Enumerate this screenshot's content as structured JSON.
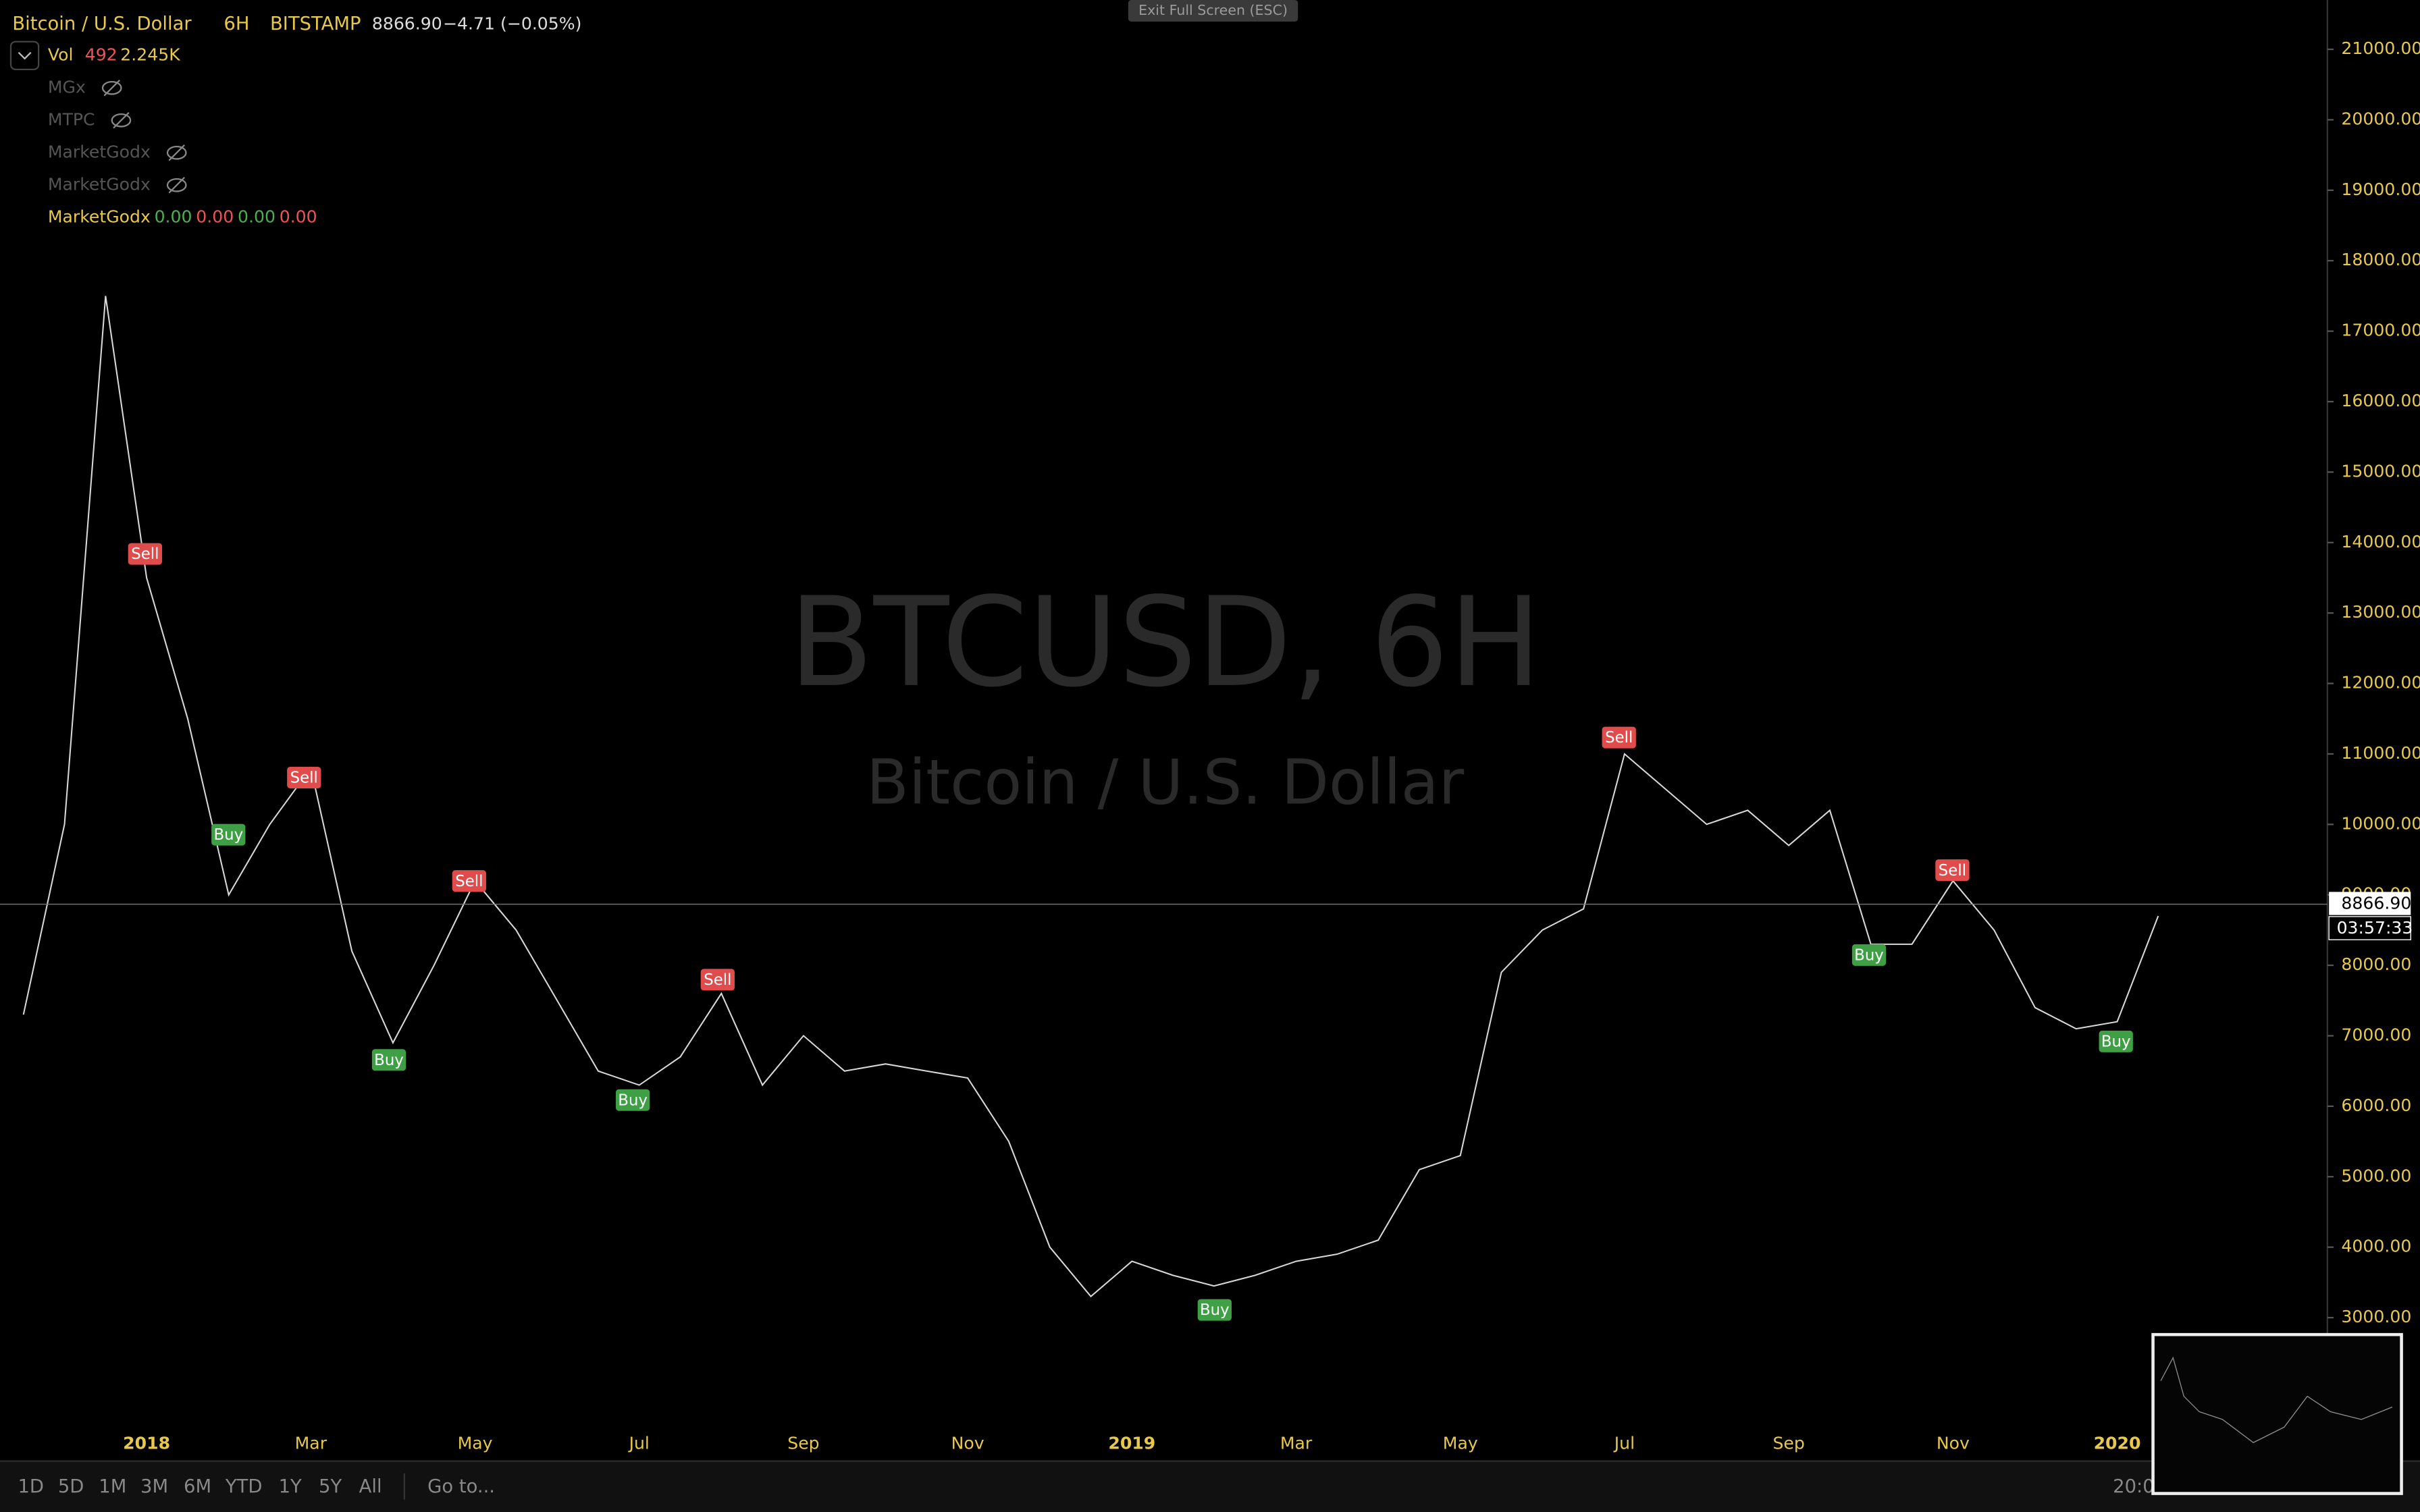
{
  "header": {
    "symbol": "Bitcoin / U.S. Dollar",
    "interval": "6H",
    "exchange": "BITSTAMP",
    "price": "8866.90",
    "change": "−4.71 (−0.05%)"
  },
  "volume": {
    "name": "Vol",
    "value": "492",
    "average": "2.245K"
  },
  "indicators": [
    {
      "name": "MGx"
    },
    {
      "name": "MTPC"
    },
    {
      "name": "MarketGodx"
    },
    {
      "name": "MarketGodx"
    },
    {
      "name": "MarketGodx",
      "values": [
        "0.00",
        "0.00",
        "0.00",
        "0.00"
      ]
    }
  ],
  "exit_button": "Exit Full Screen (ESC)",
  "watermark": {
    "title": "BTCUSD, 6H",
    "subtitle": "Bitcoin / U.S. Dollar"
  },
  "countdown": "03:57:33",
  "toolbar": {
    "ranges": [
      "1D",
      "5D",
      "1M",
      "3M",
      "6M",
      "YTD",
      "1Y",
      "5Y",
      "All"
    ],
    "goto": "Go to...",
    "time": "20:0"
  },
  "chart_data": {
    "type": "line",
    "categories": [
      null,
      null,
      null,
      "2018",
      null,
      null,
      null,
      "Mar",
      null,
      null,
      null,
      "May",
      null,
      null,
      null,
      "Jul",
      null,
      null,
      null,
      "Sep",
      null,
      null,
      null,
      "Nov",
      null,
      null,
      null,
      "2019",
      null,
      null,
      null,
      "Mar",
      null,
      null,
      null,
      "May",
      null,
      null,
      null,
      "Jul",
      null,
      null,
      null,
      "Sep",
      null,
      null,
      null,
      "Nov",
      null,
      null,
      null,
      "2020",
      null
    ],
    "series": [
      {
        "name": "BTCUSD",
        "color": "#d8d8d8",
        "values": [
          7300,
          10000,
          17500,
          13500,
          11500,
          9000,
          10000,
          10800,
          8200,
          6900,
          8000,
          9200,
          8500,
          7500,
          6500,
          6300,
          6700,
          7600,
          6300,
          7000,
          6500,
          6600,
          6500,
          6400,
          5500,
          4000,
          3300,
          3800,
          3600,
          3450,
          3600,
          3800,
          3900,
          4100,
          5100,
          5300,
          7900,
          8500,
          8800,
          11000,
          10500,
          10000,
          10200,
          9700,
          10200,
          8300,
          8300,
          9200,
          8500,
          7400,
          7100,
          7200,
          8700
        ]
      }
    ],
    "annotations": [
      "Sell",
      "Buy",
      "Sell",
      "Buy",
      "Sell",
      "Buy",
      "Sell",
      "Buy",
      "Sell",
      "Buy",
      "Sell",
      "Buy"
    ],
    "last_price": {
      "value": 8866.9,
      "label": "8866.90"
    },
    "ylim": [
      964,
      21700
    ],
    "yticks": [
      {
        "value": 3000,
        "label": "3000.00"
      },
      {
        "value": 4000,
        "label": "4000.00"
      },
      {
        "value": 5000,
        "label": "5000.00"
      },
      {
        "value": 6000,
        "label": "6000.00"
      },
      {
        "value": 7000,
        "label": "7000.00"
      },
      {
        "value": 8000,
        "label": "8000.00"
      },
      {
        "value": 9000,
        "label": "9000.00"
      },
      {
        "value": 10000,
        "label": "10000.00"
      },
      {
        "value": 11000,
        "label": "11000.00"
      },
      {
        "value": 12000,
        "label": "12000.00"
      },
      {
        "value": 13000,
        "label": "13000.00"
      },
      {
        "value": 14000,
        "label": "14000.00"
      },
      {
        "value": 15000,
        "label": "15000.00"
      },
      {
        "value": 16000,
        "label": "16000.00"
      },
      {
        "value": 17000,
        "label": "17000.00"
      },
      {
        "value": 18000,
        "label": "18000.00"
      },
      {
        "value": 19000,
        "label": "19000.00"
      },
      {
        "value": 20000,
        "label": "20000.00"
      },
      {
        "value": 21000,
        "label": "21000.00"
      }
    ]
  }
}
